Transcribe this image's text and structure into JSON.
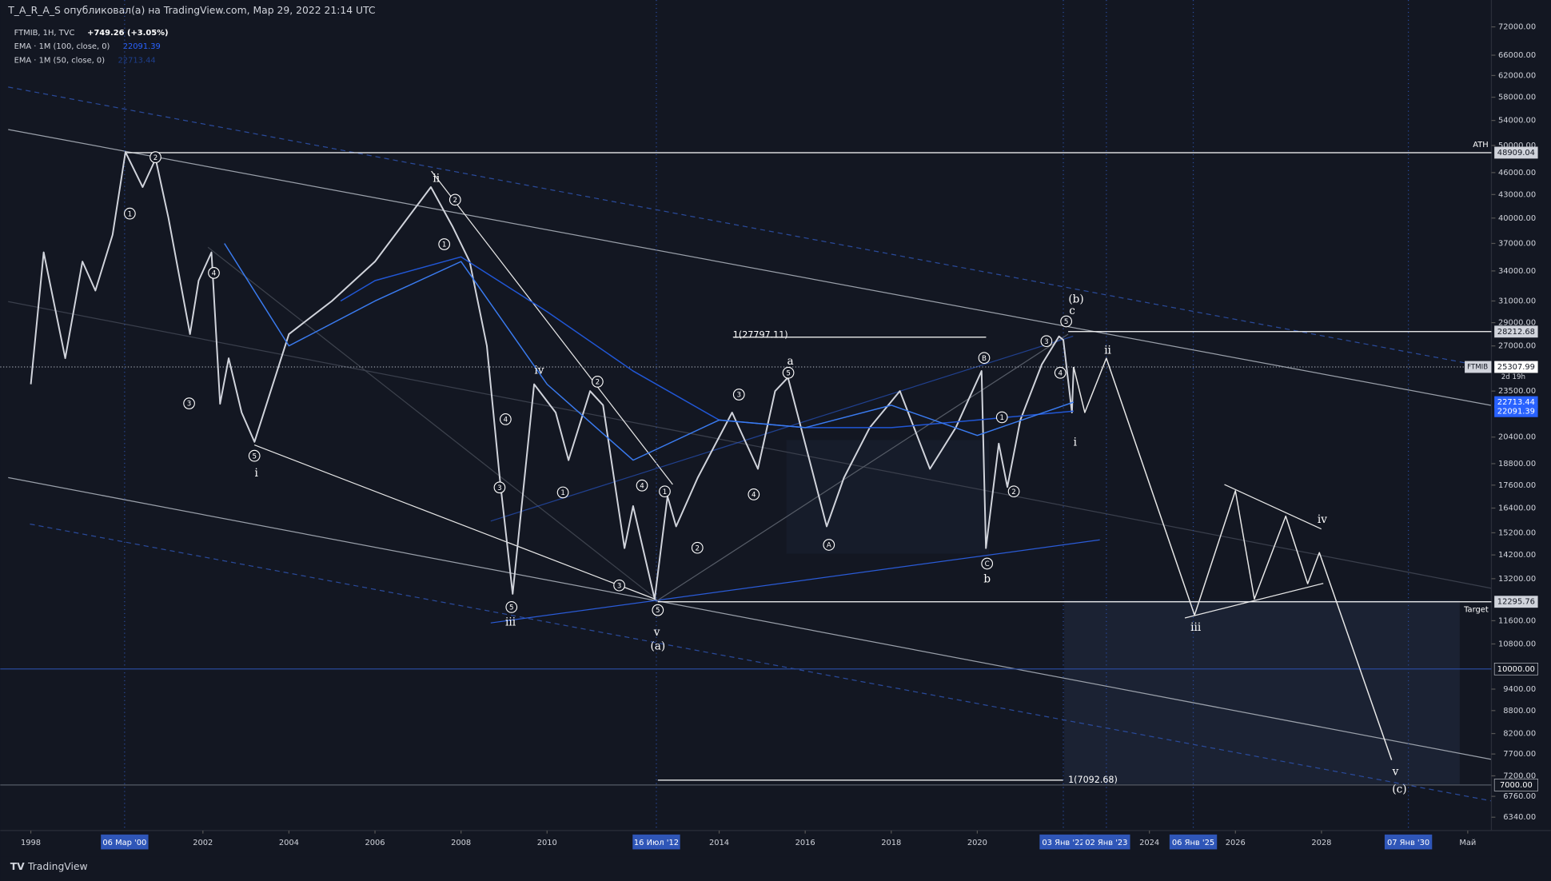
{
  "header": {
    "author_line": "T_A_R_A_S опубликовал(а) на TradingView.com, Мар 29, 2022 21:14 UTC"
  },
  "legend": {
    "symbol": "FTMIB, 1H, TVC",
    "change": "+749.26 (+3.05%)",
    "ema100": "EMA · 1M (100, close, 0)",
    "ema100_value": "22091.39",
    "ema50": "EMA · 1M (50, close, 0)",
    "ema50_value": "22713.44"
  },
  "footer": {
    "brand": "TradingView"
  },
  "chart_data": {
    "type": "line",
    "log_scale": true,
    "ylim": [
      6085,
      78200
    ],
    "yticks": [
      {
        "value": 72000,
        "label": "72000.00"
      },
      {
        "value": 66000,
        "label": "66000.00"
      },
      {
        "value": 62000,
        "label": "62000.00"
      },
      {
        "value": 58000,
        "label": "58000.00"
      },
      {
        "value": 54000,
        "label": "54000.00"
      },
      {
        "value": 50000,
        "label": "50000.00"
      },
      {
        "value": 46000,
        "label": "46000.00"
      },
      {
        "value": 43000,
        "label": "43000.00"
      },
      {
        "value": 40000,
        "label": "40000.00"
      },
      {
        "value": 37000,
        "label": "37000.00"
      },
      {
        "value": 34000,
        "label": "34000.00"
      },
      {
        "value": 31000,
        "label": "31000.00"
      },
      {
        "value": 29000,
        "label": "29000.00"
      },
      {
        "value": 27000,
        "label": "27000.00"
      },
      {
        "value": 23500,
        "label": "23500.00"
      },
      {
        "value": 20400,
        "label": "20400.00"
      },
      {
        "value": 18800,
        "label": "18800.00"
      },
      {
        "value": 17600,
        "label": "17600.00"
      },
      {
        "value": 16400,
        "label": "16400.00"
      },
      {
        "value": 15200,
        "label": "15200.00"
      },
      {
        "value": 14200,
        "label": "14200.00"
      },
      {
        "value": 13200,
        "label": "13200.00"
      },
      {
        "value": 11600,
        "label": "11600.00"
      },
      {
        "value": 10800,
        "label": "10800.00"
      },
      {
        "value": 9400,
        "label": "9400.00"
      },
      {
        "value": 8800,
        "label": "8800.00"
      },
      {
        "value": 8200,
        "label": "8200.00"
      },
      {
        "value": 7700,
        "label": "7700.00"
      },
      {
        "value": 7200,
        "label": "7200.00"
      },
      {
        "value": 6760,
        "label": "6760.00"
      },
      {
        "value": 6340,
        "label": "6340.00"
      }
    ],
    "xlim": [
      1997.29,
      2031.95
    ],
    "xticks": [
      1998,
      2002,
      2004,
      2006,
      2008,
      2010,
      2014,
      2016,
      2018,
      2020,
      2024,
      2026,
      2028,
      {
        "value": 2031.4,
        "label": "Май"
      }
    ],
    "date_marks": [
      {
        "value": 2000.18,
        "label": "06 Мар '00"
      },
      {
        "value": 2012.54,
        "label": "16 Июл '12"
      },
      {
        "value": 2022.0,
        "label": "03 Янв '22"
      },
      {
        "value": 2023.0,
        "label": "02 Янв '23"
      },
      {
        "value": 2025.02,
        "label": "06 Янв '25"
      },
      {
        "value": 2030.02,
        "label": "07 Янв '30"
      }
    ],
    "series": [
      {
        "name": "FTMIB",
        "color": "#d1d4dc",
        "x": [
          1998.0,
          1998.3,
          1998.8,
          1999.2,
          1999.5,
          1999.9,
          2000.2,
          2000.6,
          2000.9,
          2001.2,
          2001.7,
          2001.9,
          2002.2,
          2002.4,
          2002.6,
          2002.9,
          2003.2,
          2004.0,
          2005.0,
          2006.0,
          2007.3,
          2007.8,
          2008.2,
          2008.6,
          2008.9,
          2009.2,
          2009.7,
          2010.2,
          2010.5,
          2011.0,
          2011.3,
          2011.8,
          2012.0,
          2012.5,
          2012.8,
          2013.0,
          2013.5,
          2014.3,
          2014.9,
          2015.3,
          2015.6,
          2016.0,
          2016.5,
          2016.9,
          2017.5,
          2018.2,
          2018.9,
          2019.5,
          2020.1,
          2020.2,
          2020.5,
          2020.7,
          2021.0,
          2021.5,
          2021.9,
          2022.0,
          2022.2,
          2022.24
        ],
        "values": [
          24000,
          36000,
          26000,
          35000,
          32000,
          38000,
          49000,
          44000,
          48000,
          40000,
          28000,
          33000,
          36000,
          22600,
          26000,
          22000,
          20100,
          28000,
          31000,
          35000,
          44000,
          39000,
          35000,
          27000,
          18000,
          12600,
          24000,
          22000,
          19000,
          23500,
          22500,
          14500,
          16500,
          12400,
          17000,
          15500,
          18000,
          22000,
          18500,
          23500,
          24500,
          20000,
          15500,
          18000,
          21000,
          23500,
          18500,
          21000,
          25000,
          14500,
          20000,
          17500,
          21500,
          25500,
          27800,
          27500,
          22000,
          25308
        ]
      },
      {
        "name": "EMA · 1M (100, close, 0)",
        "color": "#2157d6",
        "x": [
          2005.2,
          2006.0,
          2008.0,
          2010.0,
          2012.0,
          2014.0,
          2016.0,
          2018.0,
          2020.0,
          2022.24
        ],
        "values": [
          31000,
          33000,
          35500,
          30000,
          25000,
          21500,
          21000,
          21000,
          21500,
          22091.39
        ]
      },
      {
        "name": "EMA · 1M (50, close, 0)",
        "color": "#3a7bf0",
        "x": [
          2002.5,
          2004.0,
          2006.0,
          2008.0,
          2010.0,
          2012.0,
          2014.0,
          2016.0,
          2018.0,
          2020.0,
          2022.24
        ],
        "values": [
          37000,
          27000,
          31000,
          35000,
          24000,
          19000,
          21500,
          21000,
          22500,
          20500,
          22713.44
        ]
      },
      {
        "name": "Projection",
        "color": "#e8e8e8",
        "x": [
          2022.24,
          2022.5,
          2023.0,
          2025.05,
          2026.0,
          2026.44,
          2027.17,
          2027.68,
          2027.95,
          2029.63
        ],
        "values": [
          25308,
          22000,
          26000,
          11800,
          17300,
          12400,
          16000,
          13000,
          14300,
          7560
        ]
      }
    ],
    "price_tags": [
      {
        "value": 48909.04,
        "label": "48909.04"
      },
      {
        "value": 28212.68,
        "label": "28212.68"
      },
      {
        "value": 25307.99,
        "label": "25307.99"
      },
      {
        "value": 22713.44,
        "label": "22713.44"
      },
      {
        "value": 22091.39,
        "label": "22091.39"
      },
      {
        "value": 12295.76,
        "label": "12295.76"
      },
      {
        "value": 10000,
        "label": "10000.00"
      },
      {
        "value": 7000,
        "label": "7000.00"
      }
    ],
    "current_tag": {
      "symbol": "FTMIB",
      "countdown": "2d 19h"
    },
    "level_labels": [
      "ATH",
      "Target"
    ],
    "fib_labels": [
      "1(27797.11)",
      "1(7092.68)"
    ],
    "wave_labels": [
      "ii",
      "i",
      "iii",
      "iv",
      "v",
      "(a)",
      "a",
      "b",
      "(b)",
      "c",
      "ii",
      "i",
      "iii",
      "iv",
      "v",
      "(c)"
    ],
    "circled_labels": [
      "1",
      "2",
      "3",
      "4",
      "5",
      "1",
      "2",
      "3",
      "4",
      "5",
      "1",
      "2",
      "3",
      "4",
      "5",
      "1",
      "2",
      "3",
      "4",
      "5",
      "A",
      "B",
      "C",
      "1",
      "2",
      "3",
      "4",
      "5"
    ]
  }
}
